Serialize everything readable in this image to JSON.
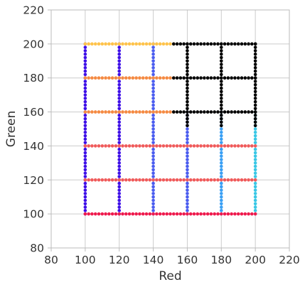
{
  "chart_data": {
    "type": "scatter",
    "title": "",
    "xlabel": "Red",
    "ylabel": "Green",
    "xlim": [
      80,
      220
    ],
    "ylim": [
      80,
      220
    ],
    "xticks": [
      80,
      100,
      120,
      140,
      160,
      180,
      200,
      220
    ],
    "yticks": [
      80,
      100,
      120,
      140,
      160,
      180,
      200,
      220
    ],
    "grid": true,
    "legend": "none",
    "colors": {
      "violet": "#3f10e8",
      "blue": "#4a5cf0",
      "skyblue": "#3aa0f5",
      "cyan": "#3ac8e6",
      "crimson": "#ef1a4d",
      "coral": "#f05a5a",
      "orange": "#f58a42",
      "amber": "#ffc34a",
      "black": "#000000",
      "grid": "#cccccc",
      "axis": "#bbbbbb"
    },
    "series": [
      {
        "name": "",
        "color": "violet",
        "kind": "vline",
        "x": 100,
        "y_range": [
          100,
          200
        ]
      },
      {
        "name": "",
        "color": "violet",
        "kind": "vline",
        "x": 120,
        "y_range": [
          100,
          200
        ]
      },
      {
        "name": "",
        "color": "blue",
        "kind": "vline",
        "x": 140,
        "y_range": [
          100,
          200
        ]
      },
      {
        "name": "",
        "color": "blue",
        "kind": "vline",
        "x": 160,
        "y_range": [
          100,
          160
        ]
      },
      {
        "name": "",
        "color": "skyblue",
        "kind": "vline",
        "x": 180,
        "y_range": [
          100,
          160
        ]
      },
      {
        "name": "",
        "color": "cyan",
        "kind": "vline",
        "x": 200,
        "y_range": [
          100,
          160
        ]
      },
      {
        "name": "",
        "color": "crimson",
        "kind": "hline",
        "y": 100,
        "x_range": [
          100,
          200
        ]
      },
      {
        "name": "",
        "color": "coral",
        "kind": "hline",
        "y": 120,
        "x_range": [
          100,
          200
        ]
      },
      {
        "name": "",
        "color": "coral",
        "kind": "hline",
        "y": 140,
        "x_range": [
          100,
          200
        ]
      },
      {
        "name": "",
        "color": "orange",
        "kind": "hline",
        "y": 160,
        "x_range": [
          100,
          152
        ]
      },
      {
        "name": "",
        "color": "orange",
        "kind": "hline",
        "y": 180,
        "x_range": [
          100,
          152
        ]
      },
      {
        "name": "",
        "color": "amber",
        "kind": "hline",
        "y": 200,
        "x_range": [
          100,
          152
        ]
      },
      {
        "name": "",
        "color": "black",
        "kind": "hline",
        "y": 160,
        "x_range": [
          152,
          200
        ]
      },
      {
        "name": "",
        "color": "black",
        "kind": "hline",
        "y": 180,
        "x_range": [
          152,
          200
        ]
      },
      {
        "name": "",
        "color": "black",
        "kind": "hline",
        "y": 200,
        "x_range": [
          152,
          200
        ]
      },
      {
        "name": "",
        "color": "black",
        "kind": "vline",
        "x": 160,
        "y_range": [
          152,
          200
        ]
      },
      {
        "name": "",
        "color": "black",
        "kind": "vline",
        "x": 180,
        "y_range": [
          152,
          200
        ]
      },
      {
        "name": "",
        "color": "black",
        "kind": "vline",
        "x": 200,
        "y_range": [
          152,
          200
        ]
      }
    ],
    "point_spacing": 2
  }
}
